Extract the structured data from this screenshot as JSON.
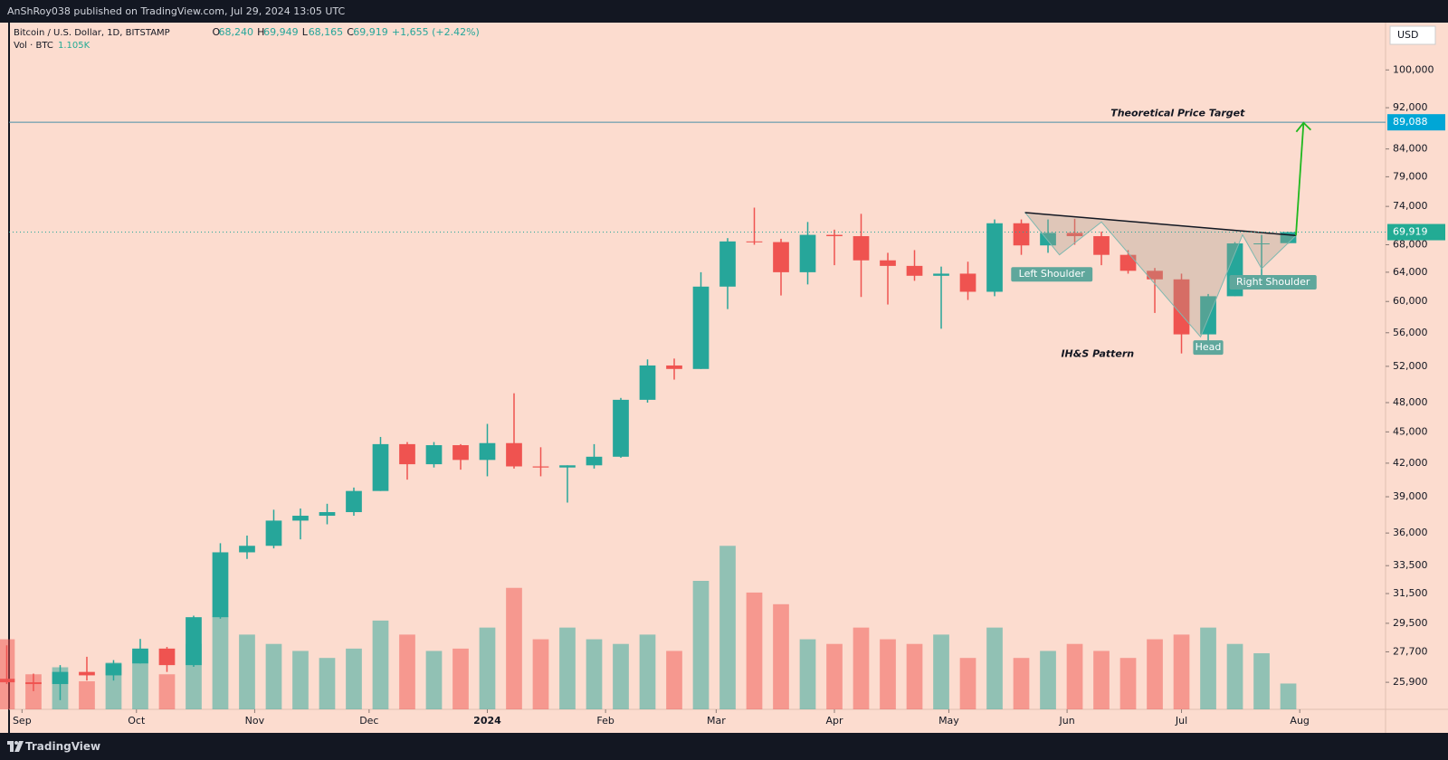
{
  "header": {
    "published": "AnShRoy038 published on TradingView.com, Jul 29, 2024 13:05 UTC"
  },
  "footer": {
    "brand": "TradingView"
  },
  "chart_data": {
    "type": "candlestick",
    "title": "Bitcoin / U.S. Dollar, 1D, BITSTAMP",
    "ohlc_legend": [
      {
        "key": "O",
        "value": "68,240"
      },
      {
        "key": "H",
        "value": "69,949"
      },
      {
        "key": "L",
        "value": "68,165"
      },
      {
        "key": "C",
        "value": "69,919"
      }
    ],
    "change": "+1,655 (+2.42%)",
    "volume_title": "Vol · BTC",
    "volume_last": "1.105K",
    "currency": "USD",
    "log_scale": true,
    "up_color": "#26a69a",
    "down_color": "#ef5350",
    "xlim": [
      -3.4,
      357.5
    ],
    "xticks": [
      {
        "value": 0,
        "label": "Sep"
      },
      {
        "value": 30,
        "label": "Oct"
      },
      {
        "value": 61,
        "label": "Nov"
      },
      {
        "value": 91,
        "label": "Dec"
      },
      {
        "value": 122,
        "label": "2024"
      },
      {
        "value": 153,
        "label": "Feb"
      },
      {
        "value": 182,
        "label": "Mar"
      },
      {
        "value": 213,
        "label": "Apr"
      },
      {
        "value": 243,
        "label": "May"
      },
      {
        "value": 274,
        "label": "Jun"
      },
      {
        "value": 304,
        "label": "Jul"
      },
      {
        "value": 335,
        "label": "Aug"
      }
    ],
    "ylim": [
      24400,
      111000
    ],
    "yticks": [
      {
        "value": 100000,
        "label": "100,000"
      },
      {
        "value": 92000,
        "label": "92,000"
      },
      {
        "value": 84000,
        "label": "84,000"
      },
      {
        "value": 79000,
        "label": "79,000"
      },
      {
        "value": 74000,
        "label": "74,000"
      },
      {
        "value": 68000,
        "label": "68,000"
      },
      {
        "value": 64000,
        "label": "64,000"
      },
      {
        "value": 60000,
        "label": "60,000"
      },
      {
        "value": 56000,
        "label": "56,000"
      },
      {
        "value": 52000,
        "label": "52,000"
      },
      {
        "value": 48000,
        "label": "48,000"
      },
      {
        "value": 45000,
        "label": "45,000"
      },
      {
        "value": 42000,
        "label": "42,000"
      },
      {
        "value": 39000,
        "label": "39,000"
      },
      {
        "value": 36000,
        "label": "36,000"
      },
      {
        "value": 33500,
        "label": "33,500"
      },
      {
        "value": 31500,
        "label": "31,500"
      },
      {
        "value": 29500,
        "label": "29,500"
      },
      {
        "value": 27700,
        "label": "27,700"
      },
      {
        "value": 25900,
        "label": "25,900"
      }
    ],
    "vlim": [
      0,
      29.4
    ],
    "candles": {
      "x": [
        -4,
        3,
        10,
        17,
        24,
        31,
        38,
        45,
        52,
        59,
        66,
        73,
        80,
        87,
        94,
        101,
        108,
        115,
        122,
        129,
        136,
        143,
        150,
        157,
        164,
        171,
        178,
        185,
        192,
        199,
        206,
        213,
        220,
        227,
        234,
        241,
        248,
        255,
        262,
        269,
        276,
        283,
        290,
        297,
        304,
        311,
        318,
        325,
        332
      ],
      "open": [
        26100,
        25900,
        25800,
        26500,
        26300,
        27000,
        27900,
        26900,
        29900,
        34500,
        35000,
        37000,
        37400,
        37700,
        39500,
        43800,
        41900,
        43700,
        42300,
        43900,
        41700,
        41600,
        41800,
        42600,
        48300,
        52100,
        51700,
        62000,
        68500,
        68400,
        64000,
        69500,
        69300,
        65700,
        64900,
        63500,
        63800,
        61300,
        71300,
        67900,
        69800,
        69300,
        66500,
        64200,
        63000,
        55800,
        60700,
        68200,
        68240
      ],
      "high": [
        28100,
        26400,
        26900,
        27400,
        27200,
        28500,
        28000,
        30000,
        35200,
        35800,
        37900,
        38000,
        38400,
        39800,
        44500,
        44000,
        44000,
        43800,
        45800,
        49000,
        43500,
        41800,
        43800,
        48500,
        52800,
        52900,
        64000,
        69000,
        73800,
        68900,
        71500,
        70300,
        72800,
        66800,
        67200,
        64800,
        65500,
        71900,
        71900,
        71900,
        72000,
        70000,
        67200,
        64600,
        63800,
        61000,
        68400,
        69500,
        69949
      ],
      "low": [
        25800,
        25400,
        24900,
        26000,
        26000,
        27000,
        26500,
        26800,
        29800,
        34000,
        34800,
        35500,
        36700,
        37400,
        39500,
        40500,
        41600,
        41400,
        40800,
        41500,
        40800,
        38500,
        41500,
        42500,
        48000,
        50500,
        51700,
        59000,
        68000,
        60800,
        62300,
        65000,
        60600,
        59600,
        62800,
        56500,
        60200,
        60700,
        66500,
        66800,
        68000,
        65000,
        63800,
        58500,
        53500,
        54600,
        60700,
        63500,
        68165
      ],
      "close": [
        25900,
        25800,
        26500,
        26300,
        27000,
        27900,
        26900,
        29900,
        34500,
        35000,
        37000,
        37400,
        37700,
        39500,
        43800,
        41900,
        43700,
        42300,
        43900,
        41700,
        41600,
        41800,
        42600,
        48300,
        52100,
        51700,
        62000,
        68500,
        68400,
        64000,
        69500,
        69300,
        65700,
        64900,
        63500,
        63800,
        61300,
        71300,
        67900,
        69800,
        69300,
        66500,
        64200,
        63000,
        55800,
        60700,
        68200,
        68200,
        69919
      ],
      "volume": [
        3.0,
        1.5,
        1.8,
        1.2,
        2.0,
        2.5,
        1.5,
        2.8,
        4.0,
        3.2,
        2.8,
        2.5,
        2.2,
        2.6,
        3.8,
        3.2,
        2.5,
        2.6,
        3.5,
        5.2,
        3.0,
        3.5,
        3.0,
        2.8,
        3.2,
        2.5,
        5.5,
        7.0,
        5.0,
        4.5,
        3.0,
        2.8,
        3.5,
        3.0,
        2.8,
        3.2,
        2.2,
        3.5,
        2.2,
        2.5,
        2.8,
        2.5,
        2.2,
        3.0,
        3.2,
        3.5,
        2.8,
        2.4,
        1.105
      ]
    },
    "price_tags": [
      {
        "value": 89088,
        "label": "89,088",
        "color": "#00a6d6"
      },
      {
        "value": 69919,
        "label": "69,919",
        "color": "#22ab94"
      }
    ],
    "target_line": {
      "value": 89088,
      "color": "#4a8fa8"
    },
    "neckline": {
      "x": [
        263,
        334
      ],
      "y": [
        73000,
        69400
      ]
    },
    "pattern": {
      "x": [
        263,
        272,
        283,
        309,
        320,
        325,
        334
      ],
      "y": [
        73000,
        66500,
        71500,
        55500,
        69500,
        64500,
        69400
      ]
    },
    "arrow": {
      "x": [
        334,
        336
      ],
      "y": [
        69400,
        89000
      ],
      "color": "#1fb81f"
    },
    "annotations": [
      {
        "text": "Theoretical Price Target",
        "x": 303,
        "y": 90800,
        "style": "italic"
      },
      {
        "text": "IH&S Pattern",
        "x": 282,
        "y": 53400,
        "style": "italic"
      },
      {
        "text": "Left Shoulder",
        "x": 270,
        "y": 63700,
        "style": "tag"
      },
      {
        "text": "Head",
        "x": 311,
        "y": 54200,
        "style": "tag"
      },
      {
        "text": "Right Shoulder",
        "x": 328,
        "y": 62600,
        "style": "tag"
      }
    ]
  }
}
